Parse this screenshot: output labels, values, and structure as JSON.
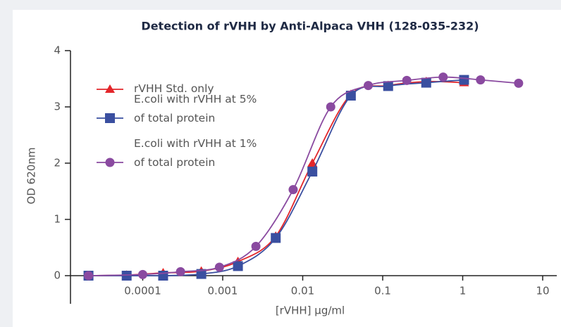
{
  "chart_data": {
    "type": "line",
    "title": "Detection of rVHH by Anti-Alpaca VHH (128-035-232)",
    "xlabel": "[rVHH] µg/ml",
    "ylabel": "OD 620nm",
    "xscale": "log",
    "xlim": [
      1.25e-05,
      15
    ],
    "ylim": [
      -0.5,
      4
    ],
    "xticks": [
      0.0001,
      0.001,
      0.01,
      0.1,
      1,
      10
    ],
    "yticks": [
      0,
      1,
      2,
      3,
      4
    ],
    "legend": "upper left",
    "series": [
      {
        "name": "rVHH Std. only",
        "color": "#e3262a",
        "marker": "triangle",
        "x": [
          2.1e-05,
          6.3e-05,
          0.00018,
          0.00054,
          0.00155,
          0.0046,
          0.0132,
          0.04,
          0.117,
          0.35,
          1.04
        ],
        "values": [
          0,
          0.01,
          0.05,
          0.08,
          0.25,
          0.7,
          2.0,
          3.22,
          3.38,
          3.45,
          3.43
        ]
      },
      {
        "name": "E.coli with rVHH at 5% of total protein",
        "color": "#3a4fa0",
        "marker": "square",
        "x": [
          2.1e-05,
          6.3e-05,
          0.00018,
          0.00054,
          0.00155,
          0.0046,
          0.0132,
          0.04,
          0.117,
          0.35,
          1.04
        ],
        "values": [
          0,
          0,
          0,
          0.03,
          0.17,
          0.67,
          1.85,
          3.2,
          3.37,
          3.43,
          3.48
        ]
      },
      {
        "name": "E.coli with rVHH at 1% of total protein",
        "color": "#8a4aa0",
        "marker": "circle",
        "x": [
          2.1e-05,
          0.0001,
          0.000297,
          0.00091,
          0.0026,
          0.0076,
          0.0224,
          0.066,
          0.2,
          0.57,
          1.67,
          5.0
        ],
        "values": [
          0,
          0.02,
          0.07,
          0.15,
          0.52,
          1.53,
          3.0,
          3.38,
          3.47,
          3.53,
          3.48,
          3.42
        ]
      }
    ]
  }
}
